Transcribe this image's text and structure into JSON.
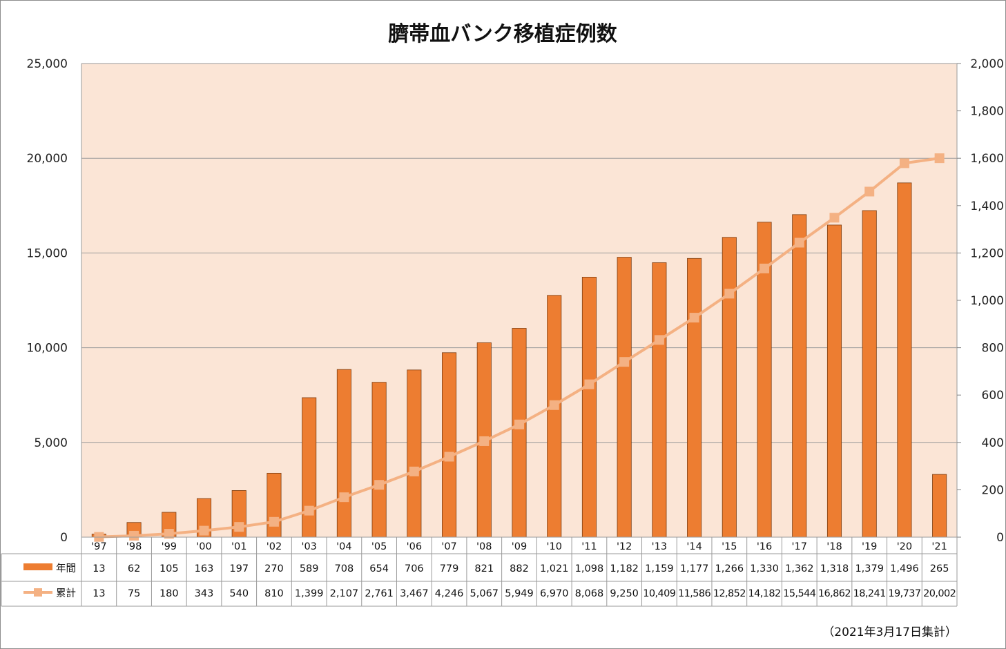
{
  "chart_data": {
    "type": "bar+line",
    "title": "臍帯血バンク移植症例数",
    "categories": [
      "'97",
      "'98",
      "'99",
      "'00",
      "'01",
      "'02",
      "'03",
      "'04",
      "'05",
      "'06",
      "'07",
      "'08",
      "'09",
      "'10",
      "'11",
      "'12",
      "'13",
      "'14",
      "'15",
      "'16",
      "'17",
      "'18",
      "'19",
      "'20",
      "'21"
    ],
    "series": [
      {
        "name": "年間",
        "type": "bar",
        "axis": "right",
        "color": "#ED7D31",
        "values": [
          13,
          62,
          105,
          163,
          197,
          270,
          589,
          708,
          654,
          706,
          779,
          821,
          882,
          1021,
          1098,
          1182,
          1159,
          1177,
          1266,
          1330,
          1362,
          1318,
          1379,
          1496,
          265
        ],
        "labels": [
          "13",
          "62",
          "105",
          "163",
          "197",
          "270",
          "589",
          "708",
          "654",
          "706",
          "779",
          "821",
          "882",
          "1,021",
          "1,098",
          "1,182",
          "1,159",
          "1,177",
          "1,266",
          "1,330",
          "1,362",
          "1,318",
          "1,379",
          "1,496",
          "265"
        ]
      },
      {
        "name": "累計",
        "type": "line",
        "axis": "left",
        "color": "#F4B183",
        "values": [
          13,
          75,
          180,
          343,
          540,
          810,
          1399,
          2107,
          2761,
          3467,
          4246,
          5067,
          5949,
          6970,
          8068,
          9250,
          10409,
          11586,
          12852,
          14182,
          15544,
          16862,
          18241,
          19737,
          20002
        ],
        "labels": [
          "13",
          "75",
          "180",
          "343",
          "540",
          "810",
          "1,399",
          "2,107",
          "2,761",
          "3,467",
          "4,246",
          "5,067",
          "5,949",
          "6,970",
          "8,068",
          "9,250",
          "10,409",
          "11,586",
          "12,852",
          "14,182",
          "15,544",
          "16,862",
          "18,241",
          "19,737",
          "20,002"
        ]
      }
    ],
    "left_axis": {
      "ylim": [
        0,
        25000
      ],
      "ticks": [
        0,
        5000,
        10000,
        15000,
        20000,
        25000
      ],
      "tick_labels": [
        "0",
        "5,000",
        "10,000",
        "15,000",
        "20,000",
        "25,000"
      ]
    },
    "right_axis": {
      "ylim": [
        0,
        2000
      ],
      "ticks": [
        0,
        200,
        400,
        600,
        800,
        1000,
        1200,
        1400,
        1600,
        1800,
        2000
      ],
      "tick_labels": [
        "0",
        "200",
        "400",
        "600",
        "800",
        "1,000",
        "1,200",
        "1,400",
        "1,600",
        "1,800",
        "2,000"
      ]
    },
    "grid": true,
    "plot_background": "#FBE5D6",
    "gridline_color": "#9a9a9a",
    "table_border_color": "#9a9a9a",
    "footnote": "（2021年3月17日集計）"
  }
}
